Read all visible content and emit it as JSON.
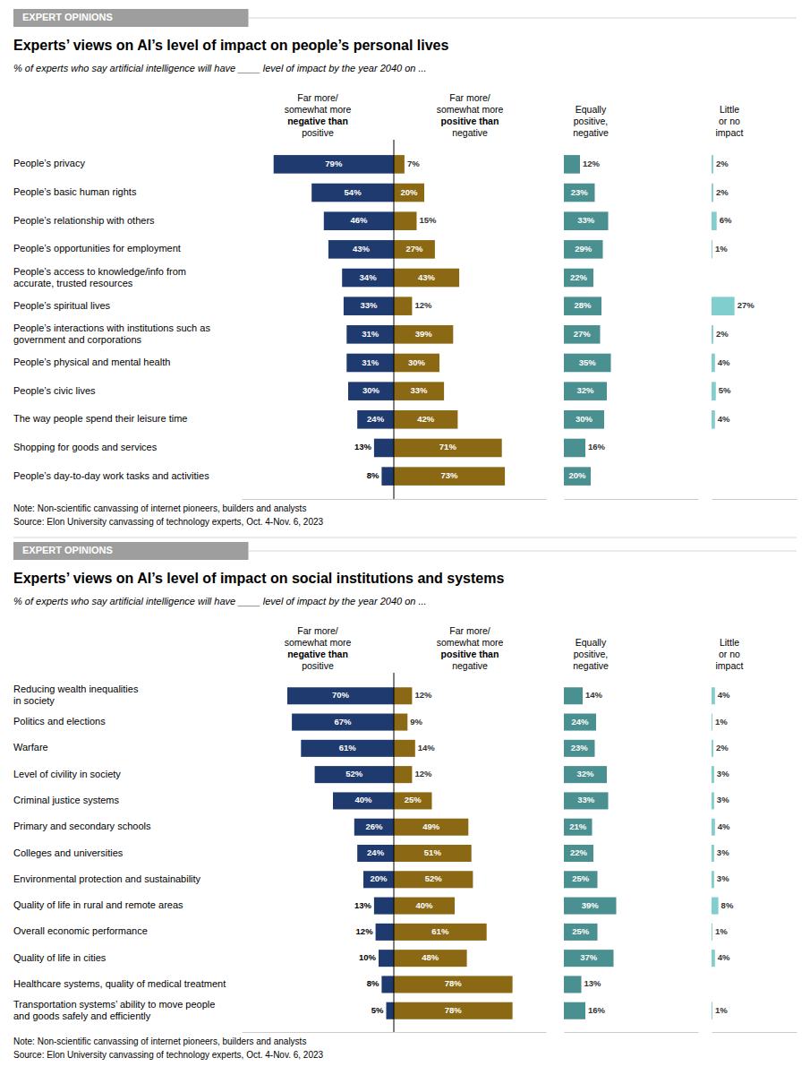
{
  "chart_data": [
    {
      "type": "bar",
      "orientation": "horizontal",
      "data_labels": true,
      "tick_labels": "y",
      "title": "Experts’ views on AI’s level of impact on people’s personal lives",
      "subtitle": "% of experts who say artificial intelligence will have ____ level of impact by the year 2040 on ...",
      "annotations": [
        "EXPERT OPINIONS",
        "Note: Non-scientific canvassing of internet pioneers, builders and analysts\nSource: Elon University canvassing of technology experts, Oct. 4-Nov. 6, 2023"
      ],
      "categories": [
        "People’s privacy",
        "People’s basic human rights",
        "People’s relationship with others",
        "People’s opportunities for employment",
        "People’s access to knowledge/info from\naccurate, trusted resources",
        "People’s spiritual lives",
        "People’s interactions with institutions such as\ngovernment and corporations",
        "People’s physical and mental health",
        "People’s civic lives",
        "The way people spend their leisure time",
        "Shopping for goods and services",
        "People’s day-to-day work tasks and activities"
      ],
      "xlim": [
        0,
        100
      ],
      "series": [
        {
          "name": "Far more/\nsomewhat more\nnegative than\npositive",
          "color": "#1e3a6e",
          "values": [
            79,
            54,
            46,
            43,
            34,
            33,
            31,
            31,
            30,
            24,
            13,
            8
          ],
          "value_labels": [
            "79%",
            "54%",
            "46%",
            "43%",
            "34%",
            "33%",
            "31%",
            "31%",
            "30%",
            "24%",
            "13%",
            "8%"
          ]
        },
        {
          "name": "Far more/\nsomewhat more\npositive than\nnegative",
          "color": "#8b6914",
          "values": [
            7,
            20,
            15,
            27,
            43,
            12,
            39,
            30,
            33,
            42,
            71,
            73
          ],
          "value_labels": [
            "7%",
            "20%",
            "15%",
            "27%",
            "43%",
            "12%",
            "39%",
            "30%",
            "33%",
            "42%",
            "71%",
            "73%"
          ]
        },
        {
          "name": "Equally\npositive,\nnegative",
          "color": "#4a9090",
          "values": [
            12,
            23,
            33,
            29,
            22,
            28,
            27,
            35,
            32,
            30,
            16,
            20
          ],
          "value_labels": [
            "12%",
            "23%",
            "33%",
            "29%",
            "22%",
            "28%",
            "27%",
            "35%",
            "32%",
            "30%",
            "16%",
            "20%"
          ]
        },
        {
          "name": "Little\nor no\nimpact",
          "color": "#80cece",
          "values": [
            2,
            2,
            6,
            1,
            0,
            27,
            2,
            4,
            5,
            4,
            0,
            0
          ],
          "value_labels": [
            "2%",
            "2%",
            "6%",
            "1%",
            null,
            "27%",
            "2%",
            "4%",
            "5%",
            "4%",
            null,
            null
          ]
        }
      ]
    },
    {
      "type": "bar",
      "orientation": "horizontal",
      "data_labels": true,
      "tick_labels": "y",
      "title": "Experts’ views on AI’s level of impact on social institutions and systems",
      "subtitle": "% of experts who say artificial intelligence will have ____ level of impact by the year 2040 on ...",
      "annotations": [
        "EXPERT OPINIONS",
        "Note: Non-scientific canvassing of internet pioneers, builders and analysts\nSource: Elon University canvassing of technology experts, Oct. 4-Nov. 6, 2023"
      ],
      "categories": [
        "Reducing wealth inequalities\nin society",
        "Politics and elections",
        "Warfare",
        "Level of civility in society",
        "Criminal justice systems",
        "Primary and secondary schools",
        "Colleges and universities",
        "Environmental protection and sustainability",
        "Quality of life in rural and remote areas",
        "Overall economic performance",
        "Quality of life in cities",
        "Healthcare systems, quality of medical treatment",
        "Transportation systems’ ability to move people\nand goods safely and efficiently"
      ],
      "xlim": [
        0,
        100
      ],
      "series": [
        {
          "name": "Far more/\nsomewhat more\nnegative than\npositive",
          "color": "#1e3a6e",
          "values": [
            70,
            67,
            61,
            52,
            40,
            26,
            24,
            20,
            13,
            12,
            10,
            8,
            5
          ],
          "value_labels": [
            "70%",
            "67%",
            "61%",
            "52%",
            "40%",
            "26%",
            "24%",
            "20%",
            "13%",
            "12%",
            "10%",
            "8%",
            "5%"
          ]
        },
        {
          "name": "Far more/\nsomewhat more\npositive than\nnegative",
          "color": "#8b6914",
          "values": [
            12,
            9,
            14,
            12,
            25,
            49,
            51,
            52,
            40,
            61,
            48,
            78,
            78
          ],
          "value_labels": [
            "12%",
            "9%",
            "14%",
            "12%",
            "25%",
            "49%",
            "51%",
            "52%",
            "40%",
            "61%",
            "48%",
            "78%",
            "78%"
          ]
        },
        {
          "name": "Equally\npositive,\nnegative",
          "color": "#4a9090",
          "values": [
            14,
            24,
            23,
            32,
            33,
            21,
            22,
            25,
            39,
            25,
            37,
            13,
            16
          ],
          "value_labels": [
            "14%",
            "24%",
            "23%",
            "32%",
            "33%",
            "21%",
            "22%",
            "25%",
            "39%",
            "25%",
            "37%",
            "13%",
            "16%"
          ]
        },
        {
          "name": "Little\nor no\nimpact",
          "color": "#80cece",
          "values": [
            4,
            1,
            2,
            3,
            3,
            4,
            3,
            3,
            8,
            1,
            4,
            0,
            1
          ],
          "value_labels": [
            "4%",
            "1%",
            "2%",
            "3%",
            "3%",
            "4%",
            "3%",
            "3%",
            "8%",
            "1%",
            "4%",
            null,
            "1%"
          ]
        }
      ]
    }
  ]
}
